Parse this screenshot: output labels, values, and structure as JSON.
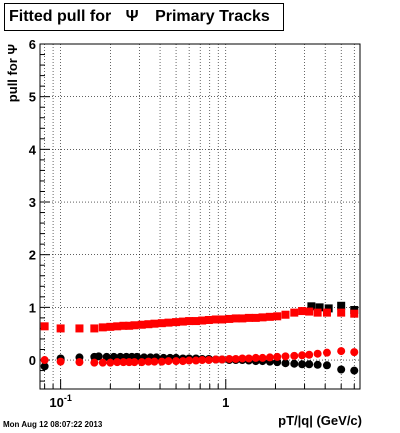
{
  "title": {
    "main": "Fitted pull for",
    "symbol": "Ψ",
    "suffix": "Primary Tracks"
  },
  "footer": "Mon Aug 12 08:07:22 2013",
  "chart_data": {
    "type": "scatter",
    "xlabel": "pT/|q| (GeV/c)",
    "ylabel": "pull for Ψ",
    "x_scale": "log",
    "xlim": [
      0.075,
      6.5
    ],
    "ylim": [
      -0.55,
      6.0
    ],
    "grid": true,
    "x_tick_labels": [
      {
        "value": 0.1,
        "base": "10",
        "exp": "-1"
      },
      {
        "value": 1,
        "base": "1",
        "exp": ""
      }
    ],
    "y_ticks": [
      0,
      1,
      2,
      3,
      4,
      5,
      6
    ],
    "series": [
      {
        "color": "#000000",
        "marker": "circle",
        "points": [
          [
            0.08,
            -0.12
          ],
          [
            0.1,
            0.03
          ],
          [
            0.13,
            0.05
          ],
          [
            0.16,
            0.06
          ],
          [
            0.17,
            0.07
          ],
          [
            0.19,
            0.06
          ],
          [
            0.21,
            0.06
          ],
          [
            0.23,
            0.06
          ],
          [
            0.25,
            0.06
          ],
          [
            0.27,
            0.06
          ],
          [
            0.29,
            0.06
          ],
          [
            0.32,
            0.05
          ],
          [
            0.35,
            0.05
          ],
          [
            0.38,
            0.05
          ],
          [
            0.42,
            0.04
          ],
          [
            0.46,
            0.04
          ],
          [
            0.5,
            0.04
          ],
          [
            0.55,
            0.03
          ],
          [
            0.6,
            0.03
          ],
          [
            0.66,
            0.03
          ],
          [
            0.72,
            0.02
          ],
          [
            0.79,
            0.02
          ],
          [
            0.87,
            0.01
          ],
          [
            0.95,
            0.01
          ],
          [
            1.05,
            0.0
          ],
          [
            1.15,
            0.0
          ],
          [
            1.26,
            0.0
          ],
          [
            1.38,
            -0.01
          ],
          [
            1.52,
            -0.02
          ],
          [
            1.67,
            -0.02
          ],
          [
            1.85,
            -0.03
          ],
          [
            2.05,
            -0.04
          ],
          [
            2.3,
            -0.06
          ],
          [
            2.6,
            -0.07
          ],
          [
            2.9,
            -0.08
          ],
          [
            3.2,
            -0.08
          ],
          [
            3.6,
            -0.09
          ],
          [
            4.1,
            -0.1
          ],
          [
            5.0,
            -0.18
          ],
          [
            6.0,
            -0.2
          ]
        ]
      },
      {
        "color": "#000000",
        "marker": "square",
        "points": [
          [
            3.3,
            1.02
          ],
          [
            3.7,
            1.0
          ],
          [
            4.2,
            0.98
          ],
          [
            5.0,
            1.03
          ],
          [
            6.0,
            0.95
          ]
        ]
      },
      {
        "color": "#ff0000",
        "marker": "square",
        "points": [
          [
            0.08,
            0.64
          ],
          [
            0.1,
            0.6
          ],
          [
            0.13,
            0.6
          ],
          [
            0.16,
            0.6
          ],
          [
            0.18,
            0.62
          ],
          [
            0.2,
            0.63
          ],
          [
            0.22,
            0.64
          ],
          [
            0.24,
            0.65
          ],
          [
            0.26,
            0.65
          ],
          [
            0.28,
            0.66
          ],
          [
            0.31,
            0.67
          ],
          [
            0.34,
            0.68
          ],
          [
            0.37,
            0.69
          ],
          [
            0.41,
            0.7
          ],
          [
            0.45,
            0.71
          ],
          [
            0.5,
            0.72
          ],
          [
            0.55,
            0.73
          ],
          [
            0.6,
            0.74
          ],
          [
            0.66,
            0.74
          ],
          [
            0.72,
            0.75
          ],
          [
            0.79,
            0.76
          ],
          [
            0.87,
            0.77
          ],
          [
            0.95,
            0.77
          ],
          [
            1.05,
            0.78
          ],
          [
            1.15,
            0.79
          ],
          [
            1.26,
            0.79
          ],
          [
            1.38,
            0.8
          ],
          [
            1.52,
            0.8
          ],
          [
            1.67,
            0.81
          ],
          [
            1.85,
            0.82
          ],
          [
            2.05,
            0.83
          ],
          [
            2.3,
            0.86
          ],
          [
            2.6,
            0.9
          ],
          [
            2.9,
            0.93
          ],
          [
            3.2,
            0.92
          ],
          [
            3.6,
            0.9
          ],
          [
            4.1,
            0.9
          ],
          [
            5.0,
            0.9
          ],
          [
            6.0,
            0.88
          ]
        ]
      },
      {
        "color": "#ff0000",
        "marker": "circle",
        "points": [
          [
            0.08,
            0.0
          ],
          [
            0.1,
            -0.03
          ],
          [
            0.13,
            -0.04
          ],
          [
            0.16,
            -0.05
          ],
          [
            0.18,
            -0.05
          ],
          [
            0.2,
            -0.05
          ],
          [
            0.22,
            -0.04
          ],
          [
            0.24,
            -0.04
          ],
          [
            0.26,
            -0.04
          ],
          [
            0.28,
            -0.04
          ],
          [
            0.31,
            -0.04
          ],
          [
            0.34,
            -0.03
          ],
          [
            0.37,
            -0.03
          ],
          [
            0.41,
            -0.03
          ],
          [
            0.45,
            -0.02
          ],
          [
            0.5,
            -0.02
          ],
          [
            0.55,
            -0.02
          ],
          [
            0.6,
            -0.01
          ],
          [
            0.66,
            -0.01
          ],
          [
            0.72,
            0.0
          ],
          [
            0.79,
            0.0
          ],
          [
            0.87,
            0.01
          ],
          [
            0.95,
            0.01
          ],
          [
            1.05,
            0.02
          ],
          [
            1.15,
            0.02
          ],
          [
            1.26,
            0.03
          ],
          [
            1.38,
            0.03
          ],
          [
            1.52,
            0.04
          ],
          [
            1.67,
            0.04
          ],
          [
            1.85,
            0.05
          ],
          [
            2.05,
            0.06
          ],
          [
            2.3,
            0.07
          ],
          [
            2.6,
            0.08
          ],
          [
            2.9,
            0.09
          ],
          [
            3.2,
            0.1
          ],
          [
            3.6,
            0.12
          ],
          [
            4.1,
            0.14
          ],
          [
            5.0,
            0.17
          ],
          [
            6.0,
            0.15
          ]
        ]
      }
    ]
  }
}
